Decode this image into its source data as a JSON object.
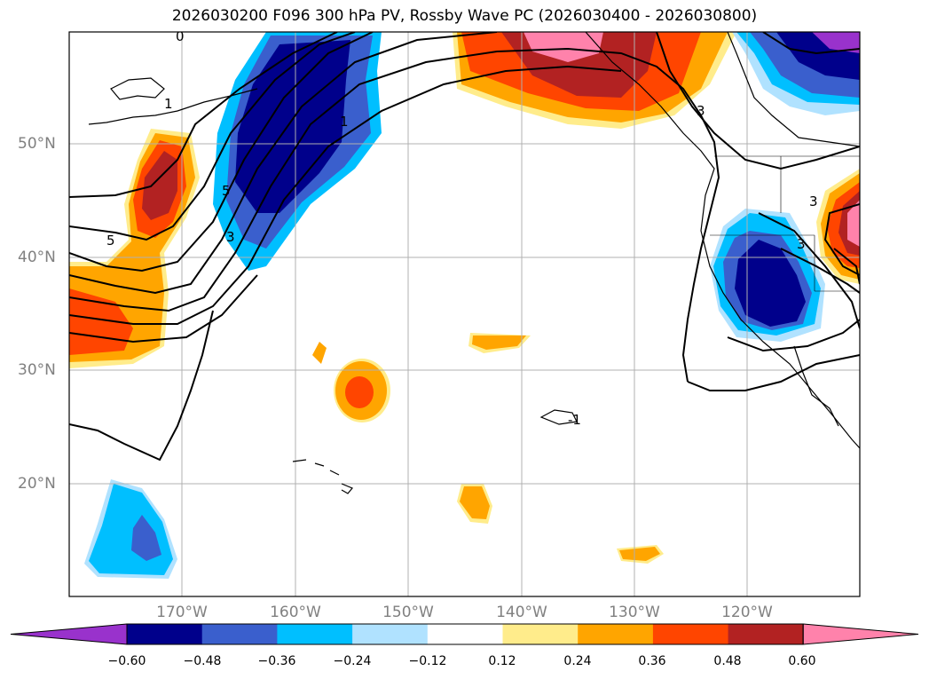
{
  "title": "2026030200 F096 300 hPa PV, Rossby Wave PC (2026030400 - 2026030800)",
  "axes": {
    "lat_labels": [
      "50°N",
      "40°N",
      "30°N",
      "20°N"
    ],
    "lon_labels": [
      "170°W",
      "160°W",
      "150°W",
      "140°W",
      "130°W",
      "120°W"
    ]
  },
  "contour_labels": [
    "5",
    "5",
    "3",
    "3",
    "1",
    "1",
    "3",
    "3",
    "-1",
    "0"
  ],
  "colorbar": {
    "ticks": [
      "−0.60",
      "−0.48",
      "−0.36",
      "−0.24",
      "−0.12",
      "0.12",
      "0.24",
      "0.36",
      "0.48",
      "0.60"
    ],
    "colors": [
      "#9932cc",
      "#00008b",
      "#3a5fcd",
      "#00bfff",
      "#b0e2ff",
      "#ffffff",
      "#ffec8b",
      "#ffa500",
      "#ff4500",
      "#b22222",
      "#ff82ab"
    ]
  }
}
